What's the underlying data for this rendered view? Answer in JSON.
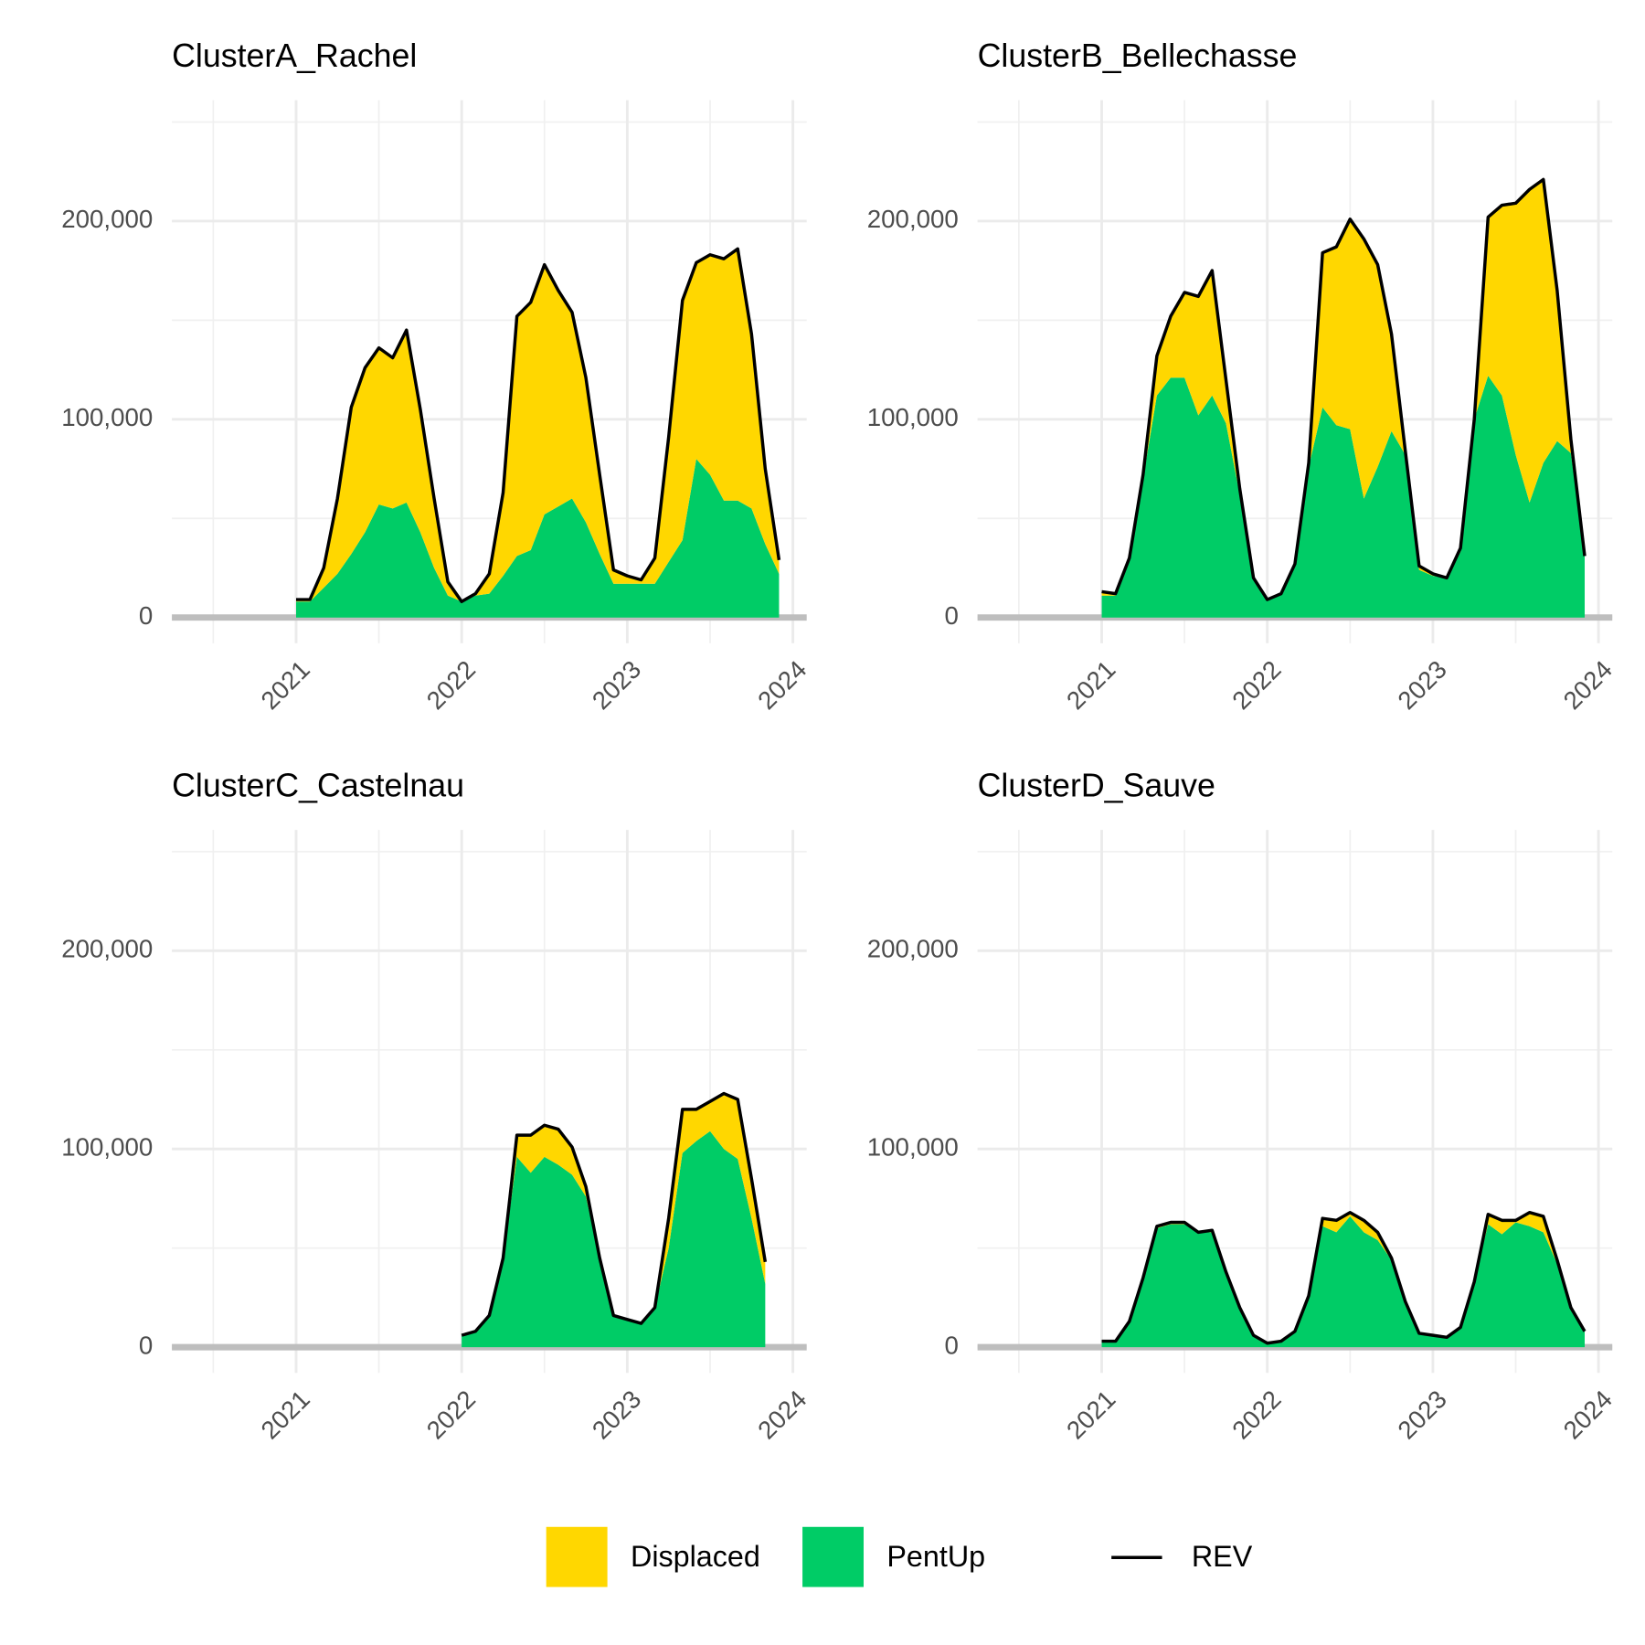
{
  "chart_data": [
    {
      "type": "area",
      "title": "ClusterA_Rachel",
      "x": [
        "2021-01",
        "2021-02",
        "2021-03",
        "2021-04",
        "2021-05",
        "2021-06",
        "2021-07",
        "2021-08",
        "2021-09",
        "2021-10",
        "2021-11",
        "2021-12",
        "2022-01",
        "2022-02",
        "2022-03",
        "2022-04",
        "2022-05",
        "2022-06",
        "2022-07",
        "2022-08",
        "2022-09",
        "2022-10",
        "2022-11",
        "2022-12",
        "2023-01",
        "2023-02",
        "2023-03",
        "2023-04",
        "2023-05",
        "2023-06",
        "2023-07",
        "2023-08",
        "2023-09",
        "2023-10",
        "2023-11",
        "2023-12"
      ],
      "series": [
        {
          "name": "Displaced",
          "type": "area",
          "color": "#FFD700",
          "values": [
            1000,
            1000,
            10000,
            38000,
            74000,
            83000,
            79000,
            76000,
            87000,
            62000,
            35000,
            7000,
            0,
            1000,
            10000,
            42000,
            121000,
            125000,
            126000,
            109000,
            94000,
            73000,
            40000,
            7000,
            4000,
            2000,
            13000,
            63000,
            121000,
            99000,
            111000,
            122000,
            127000,
            88000,
            38000,
            7000
          ]
        },
        {
          "name": "PentUp",
          "type": "area",
          "color": "#00CC66",
          "values": [
            8000,
            8000,
            15000,
            22000,
            32000,
            43000,
            57000,
            55000,
            58000,
            43000,
            25000,
            11000,
            8000,
            11000,
            12000,
            21000,
            31000,
            34000,
            52000,
            56000,
            60000,
            48000,
            32000,
            17000,
            17000,
            17000,
            17000,
            28000,
            39000,
            80000,
            72000,
            59000,
            59000,
            55000,
            37000,
            22000
          ]
        },
        {
          "name": "REV",
          "type": "line",
          "color": "#000000",
          "values": [
            9000,
            9000,
            25000,
            60000,
            106000,
            126000,
            136000,
            131000,
            145000,
            105000,
            60000,
            18000,
            8000,
            12000,
            22000,
            63000,
            152000,
            159000,
            178000,
            165000,
            154000,
            121000,
            72000,
            24000,
            21000,
            19000,
            30000,
            91000,
            160000,
            179000,
            183000,
            181000,
            186000,
            143000,
            75000,
            29000
          ]
        }
      ],
      "xlim": [
        "2020-04",
        "2024-02"
      ],
      "xticks": [
        "2021",
        "2022",
        "2023",
        "2024"
      ],
      "xminor": [
        "2020-07",
        "2021-07",
        "2022-07",
        "2023-07"
      ],
      "ylim": [
        -13000,
        261000
      ],
      "yticks": [
        0,
        {
          "value": 100000,
          "label": "100,000"
        },
        {
          "value": 200000,
          "label": "200,000"
        }
      ],
      "yminor": [
        50000,
        150000,
        250000
      ],
      "grid": true,
      "zero_line": true
    },
    {
      "type": "area",
      "title": "ClusterB_Bellechasse",
      "x": [
        "2021-01",
        "2021-02",
        "2021-03",
        "2021-04",
        "2021-05",
        "2021-06",
        "2021-07",
        "2021-08",
        "2021-09",
        "2021-10",
        "2021-11",
        "2021-12",
        "2022-01",
        "2022-02",
        "2022-03",
        "2022-04",
        "2022-05",
        "2022-06",
        "2022-07",
        "2022-08",
        "2022-09",
        "2022-10",
        "2022-11",
        "2022-12",
        "2023-01",
        "2023-02",
        "2023-03",
        "2023-04",
        "2023-05",
        "2023-06",
        "2023-07",
        "2023-08",
        "2023-09",
        "2023-10",
        "2023-11",
        "2023-12"
      ],
      "series": [
        {
          "name": "Displaced",
          "type": "area",
          "color": "#FFD700",
          "values": [
            2000,
            1000,
            0,
            2000,
            20000,
            31000,
            43000,
            60000,
            63000,
            22000,
            3000,
            1000,
            0,
            0,
            0,
            2000,
            78000,
            90000,
            106000,
            131000,
            102000,
            49000,
            2000,
            2000,
            1000,
            0,
            2000,
            0,
            80000,
            96000,
            127000,
            158000,
            143000,
            76000,
            7000,
            0
          ]
        },
        {
          "name": "PentUp",
          "type": "area",
          "color": "#00CC66",
          "values": [
            11000,
            11000,
            30000,
            70000,
            112000,
            121000,
            121000,
            102000,
            112000,
            98000,
            62000,
            19000,
            9000,
            12000,
            27000,
            76000,
            106000,
            97000,
            95000,
            60000,
            76000,
            94000,
            82000,
            24000,
            21000,
            20000,
            33000,
            100000,
            122000,
            112000,
            82000,
            58000,
            78000,
            89000,
            83000,
            31000
          ]
        },
        {
          "name": "REV",
          "type": "line",
          "color": "#000000",
          "values": [
            13000,
            12000,
            30000,
            72000,
            132000,
            152000,
            164000,
            162000,
            175000,
            120000,
            65000,
            20000,
            9000,
            12000,
            27000,
            78000,
            184000,
            187000,
            201000,
            191000,
            178000,
            143000,
            84000,
            26000,
            22000,
            20000,
            35000,
            100000,
            202000,
            208000,
            209000,
            216000,
            221000,
            165000,
            90000,
            31000
          ]
        }
      ],
      "xlim": [
        "2020-04",
        "2024-02"
      ],
      "xticks": [
        "2021",
        "2022",
        "2023",
        "2024"
      ],
      "xminor": [
        "2020-07",
        "2021-07",
        "2022-07",
        "2023-07"
      ],
      "ylim": [
        -13000,
        261000
      ],
      "yticks": [
        0,
        {
          "value": 100000,
          "label": "100,000"
        },
        {
          "value": 200000,
          "label": "200,000"
        }
      ],
      "yminor": [
        50000,
        150000,
        250000
      ],
      "grid": true,
      "zero_line": true
    },
    {
      "type": "area",
      "title": "ClusterC_Castelnau",
      "x": [
        "2022-01",
        "2022-02",
        "2022-03",
        "2022-04",
        "2022-05",
        "2022-06",
        "2022-07",
        "2022-08",
        "2022-09",
        "2022-10",
        "2022-11",
        "2022-12",
        "2023-01",
        "2023-02",
        "2023-03",
        "2023-04",
        "2023-05",
        "2023-06",
        "2023-07",
        "2023-08",
        "2023-09",
        "2023-10",
        "2023-11"
      ],
      "series": [
        {
          "name": "Displaced",
          "type": "area",
          "color": "#FFD700",
          "values": [
            0,
            0,
            0,
            1000,
            11000,
            19000,
            16000,
            18000,
            14000,
            5000,
            0,
            0,
            0,
            0,
            0,
            15000,
            22000,
            16000,
            15000,
            28000,
            30000,
            20000,
            11000
          ]
        },
        {
          "name": "PentUp",
          "type": "area",
          "color": "#00CC66",
          "values": [
            6000,
            8000,
            16000,
            44000,
            96000,
            88000,
            96000,
            92000,
            87000,
            76000,
            45000,
            16000,
            14000,
            12000,
            20000,
            50000,
            98000,
            104000,
            109000,
            100000,
            95000,
            65000,
            32000
          ]
        },
        {
          "name": "REV",
          "type": "line",
          "color": "#000000",
          "values": [
            6000,
            8000,
            16000,
            45000,
            107000,
            107000,
            112000,
            110000,
            101000,
            81000,
            45000,
            16000,
            14000,
            12000,
            20000,
            65000,
            120000,
            120000,
            124000,
            128000,
            125000,
            85000,
            43000
          ]
        }
      ],
      "xlim": [
        "2020-04",
        "2024-02"
      ],
      "xticks": [
        "2021",
        "2022",
        "2023",
        "2024"
      ],
      "xminor": [
        "2020-07",
        "2021-07",
        "2022-07",
        "2023-07"
      ],
      "ylim": [
        -13000,
        261000
      ],
      "yticks": [
        0,
        {
          "value": 100000,
          "label": "100,000"
        },
        {
          "value": 200000,
          "label": "200,000"
        }
      ],
      "yminor": [
        50000,
        150000,
        250000
      ],
      "grid": true,
      "zero_line": true
    },
    {
      "type": "area",
      "title": "ClusterD_Sauve",
      "x": [
        "2021-01",
        "2021-02",
        "2021-03",
        "2021-04",
        "2021-05",
        "2021-06",
        "2021-07",
        "2021-08",
        "2021-09",
        "2021-10",
        "2021-11",
        "2021-12",
        "2022-01",
        "2022-02",
        "2022-03",
        "2022-04",
        "2022-05",
        "2022-06",
        "2022-07",
        "2022-08",
        "2022-09",
        "2022-10",
        "2022-11",
        "2022-12",
        "2023-01",
        "2023-02",
        "2023-03",
        "2023-04",
        "2023-05",
        "2023-06",
        "2023-07",
        "2023-08",
        "2023-09",
        "2023-10",
        "2023-11",
        "2023-12"
      ],
      "series": [
        {
          "name": "Displaced",
          "type": "area",
          "color": "#FFD700",
          "values": [
            0,
            0,
            0,
            0,
            1000,
            1000,
            1000,
            0,
            1000,
            0,
            0,
            0,
            0,
            0,
            0,
            0,
            4000,
            6000,
            2000,
            6000,
            4000,
            1000,
            0,
            0,
            0,
            0,
            0,
            0,
            5000,
            7000,
            1000,
            7000,
            8000,
            2000,
            0,
            0
          ]
        },
        {
          "name": "PentUp",
          "type": "area",
          "color": "#00CC66",
          "values": [
            3000,
            3000,
            13000,
            35000,
            60000,
            62000,
            62000,
            58000,
            58000,
            38000,
            20000,
            6000,
            2000,
            3000,
            8000,
            26000,
            61000,
            58000,
            66000,
            58000,
            54000,
            44000,
            23000,
            7000,
            6000,
            5000,
            10000,
            33000,
            62000,
            57000,
            63000,
            61000,
            58000,
            42000,
            20000,
            8000
          ]
        },
        {
          "name": "REV",
          "type": "line",
          "color": "#000000",
          "values": [
            3000,
            3000,
            13000,
            35000,
            61000,
            63000,
            63000,
            58000,
            59000,
            38000,
            20000,
            6000,
            2000,
            3000,
            8000,
            26000,
            65000,
            64000,
            68000,
            64000,
            58000,
            45000,
            23000,
            7000,
            6000,
            5000,
            10000,
            33000,
            67000,
            64000,
            64000,
            68000,
            66000,
            44000,
            20000,
            8000
          ]
        }
      ],
      "xlim": [
        "2020-04",
        "2024-02"
      ],
      "xticks": [
        "2021",
        "2022",
        "2023",
        "2024"
      ],
      "xminor": [
        "2020-07",
        "2021-07",
        "2022-07",
        "2023-07"
      ],
      "ylim": [
        -13000,
        261000
      ],
      "yticks": [
        0,
        {
          "value": 100000,
          "label": "100,000"
        },
        {
          "value": 200000,
          "label": "200,000"
        }
      ],
      "yminor": [
        50000,
        150000,
        250000
      ],
      "grid": true,
      "zero_line": true
    }
  ]
}
